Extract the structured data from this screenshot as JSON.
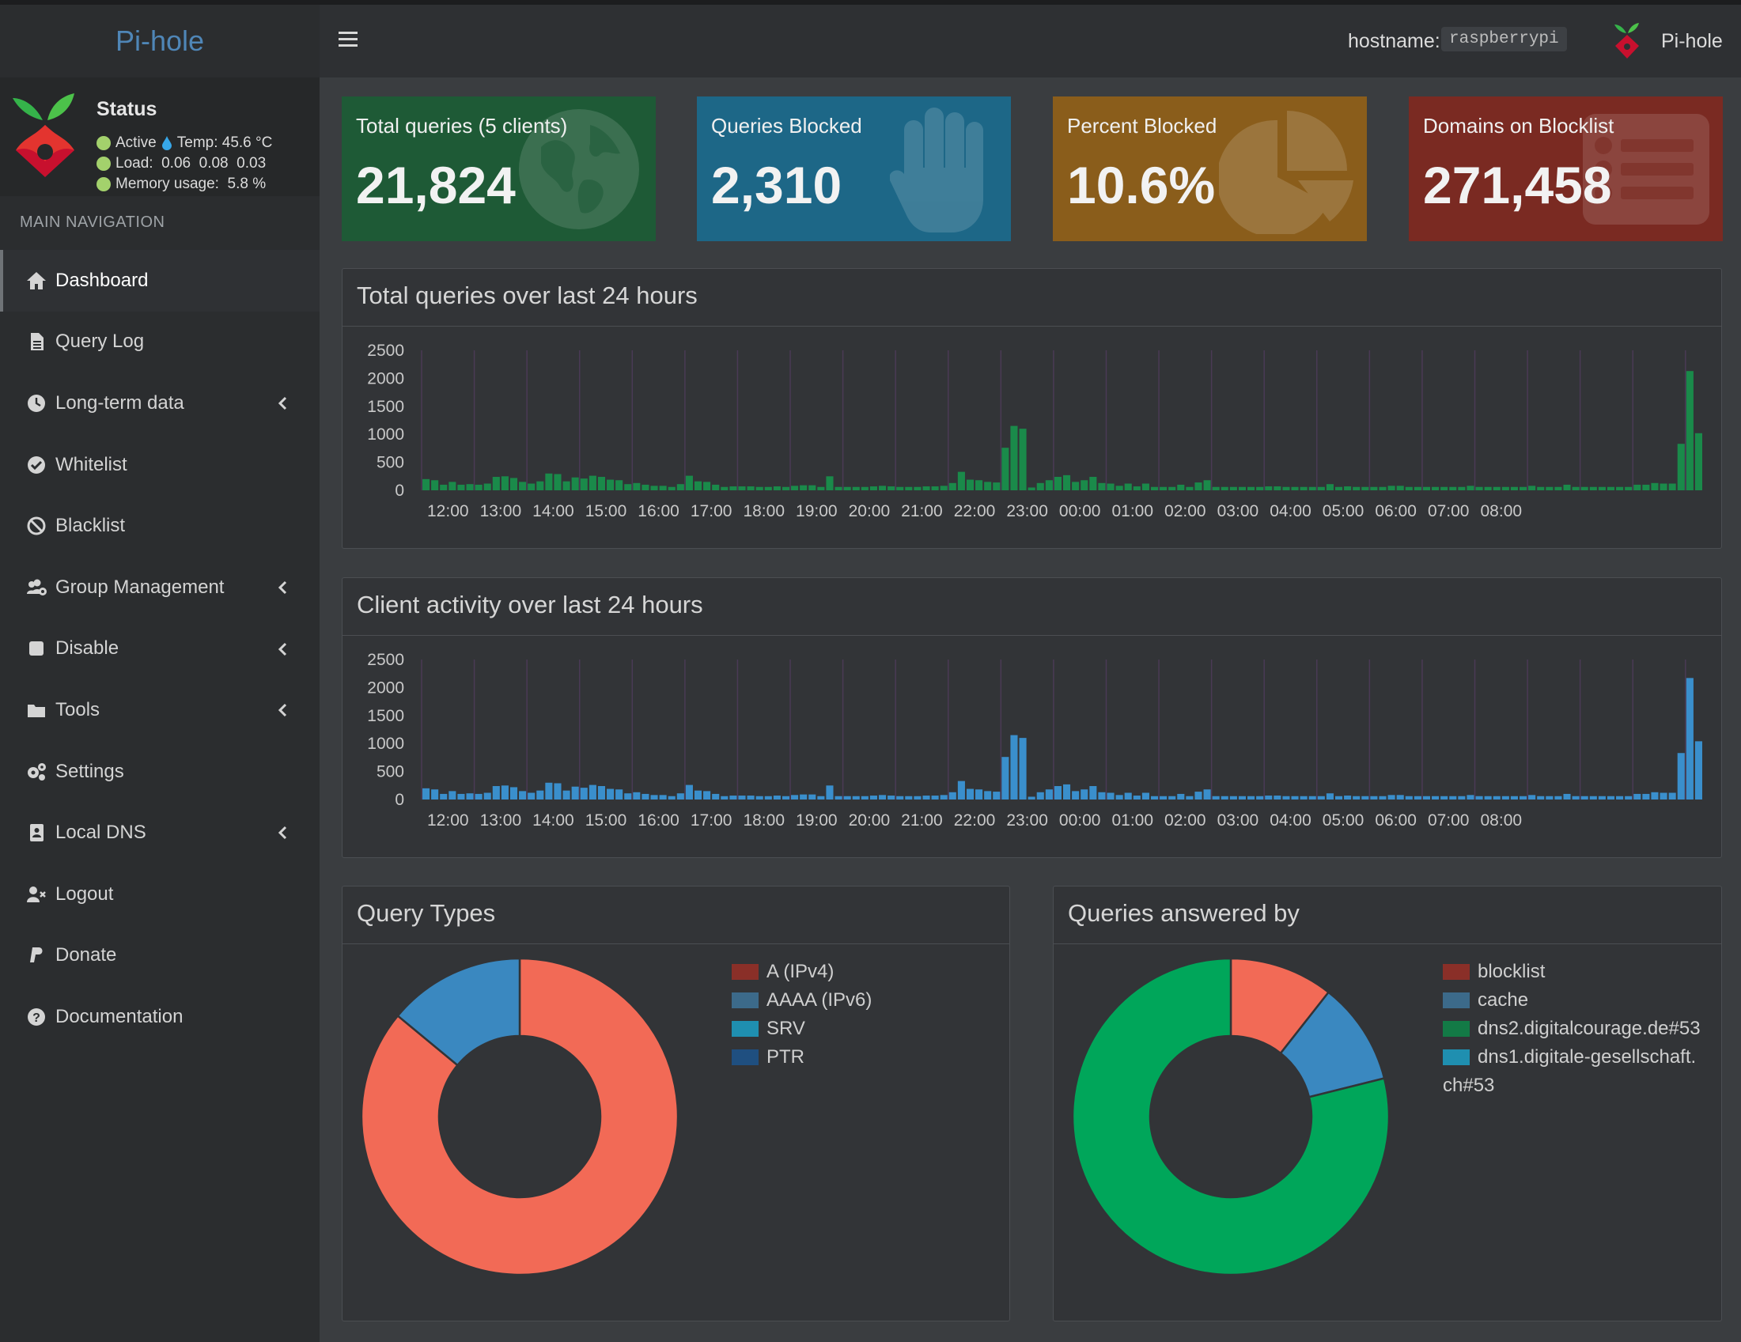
{
  "app": {
    "brand": "Pi-hole",
    "hostname_label": "hostname:",
    "hostname_value": "raspberrypi",
    "user_name": "Pi-hole"
  },
  "status": {
    "title": "Status",
    "active": "Active",
    "temp": "Temp: 45.6 °C",
    "load": "Load:  0.06  0.08  0.03",
    "memory": "Memory usage:  5.8 %"
  },
  "sidebar": {
    "header": "MAIN NAVIGATION",
    "items": [
      {
        "label": "Dashboard",
        "icon": "home-icon",
        "active": true,
        "submenu": false
      },
      {
        "label": "Query Log",
        "icon": "file-icon",
        "active": false,
        "submenu": false
      },
      {
        "label": "Long-term data",
        "icon": "clock-icon",
        "active": false,
        "submenu": true
      },
      {
        "label": "Whitelist",
        "icon": "check-circle-icon",
        "active": false,
        "submenu": false
      },
      {
        "label": "Blacklist",
        "icon": "ban-icon",
        "active": false,
        "submenu": false
      },
      {
        "label": "Group Management",
        "icon": "users-cog-icon",
        "active": false,
        "submenu": true
      },
      {
        "label": "Disable",
        "icon": "stop-icon",
        "active": false,
        "submenu": true
      },
      {
        "label": "Tools",
        "icon": "folder-icon",
        "active": false,
        "submenu": true
      },
      {
        "label": "Settings",
        "icon": "gears-icon",
        "active": false,
        "submenu": false
      },
      {
        "label": "Local DNS",
        "icon": "address-book-icon",
        "active": false,
        "submenu": true
      },
      {
        "label": "Logout",
        "icon": "user-times-icon",
        "active": false,
        "submenu": false
      },
      {
        "label": "Donate",
        "icon": "paypal-icon",
        "active": false,
        "submenu": false
      },
      {
        "label": "Documentation",
        "icon": "question-circle-icon",
        "active": false,
        "submenu": false
      }
    ]
  },
  "stats": [
    {
      "label": "Total queries (5 clients)",
      "value": "21,824",
      "color": "#1e5a36",
      "icon": "globe-icon"
    },
    {
      "label": "Queries Blocked",
      "value": "2,310",
      "color": "#1d6787",
      "icon": "hand-icon"
    },
    {
      "label": "Percent Blocked",
      "value": "10.6%",
      "color": "#8a5d1b",
      "icon": "pie-chart-icon"
    },
    {
      "label": "Domains on Blocklist",
      "value": "271,458",
      "color": "#7a2a22",
      "icon": "list-icon"
    }
  ],
  "colors": {
    "queries_bar": "#1a8a4a",
    "clients_bar": "#3a8fcc",
    "grid_vline": "#4a3a55"
  },
  "panels": {
    "total_queries_title": "Total queries over last 24 hours",
    "client_activity_title": "Client activity over last 24 hours",
    "query_types_title": "Query Types",
    "answered_by_title": "Queries answered by"
  },
  "chart_data": [
    {
      "type": "bar",
      "title": "Total queries over last 24 hours",
      "x_ticks": [
        "12:00",
        "13:00",
        "14:00",
        "15:00",
        "16:00",
        "17:00",
        "18:00",
        "19:00",
        "20:00",
        "21:00",
        "22:00",
        "23:00",
        "00:00",
        "01:00",
        "02:00",
        "03:00",
        "04:00",
        "05:00",
        "06:00",
        "07:00",
        "08:00"
      ],
      "y_ticks": [
        "2500",
        "2000",
        "1500",
        "1000",
        "500",
        "0"
      ],
      "ylim": [
        0,
        2500
      ],
      "bins_per_hour": 6,
      "color": "#1a8a4a",
      "values": [
        200,
        180,
        100,
        150,
        100,
        110,
        100,
        120,
        240,
        250,
        220,
        150,
        120,
        160,
        300,
        290,
        160,
        230,
        210,
        260,
        240,
        190,
        180,
        110,
        130,
        100,
        80,
        80,
        60,
        110,
        260,
        160,
        150,
        100,
        60,
        70,
        70,
        70,
        60,
        60,
        70,
        60,
        80,
        90,
        90,
        60,
        250,
        60,
        60,
        60,
        60,
        70,
        80,
        70,
        60,
        60,
        60,
        70,
        70,
        80,
        130,
        330,
        190,
        180,
        150,
        140,
        760,
        1150,
        1100,
        50,
        130,
        180,
        240,
        270,
        150,
        180,
        240,
        130,
        120,
        80,
        120,
        70,
        120,
        60,
        60,
        60,
        100,
        60,
        140,
        180,
        60,
        60,
        60,
        60,
        60,
        60,
        70,
        70,
        60,
        60,
        60,
        60,
        60,
        110,
        60,
        70,
        60,
        60,
        60,
        60,
        80,
        80,
        60,
        60,
        60,
        60,
        60,
        60,
        60,
        80,
        60,
        60,
        60,
        60,
        60,
        60,
        80,
        60,
        60,
        60,
        100,
        60,
        60,
        60,
        60,
        60,
        60,
        60,
        100,
        100,
        130,
        120,
        120,
        830,
        2130,
        1020
      ]
    },
    {
      "type": "bar",
      "title": "Client activity over last 24 hours",
      "x_ticks": [
        "12:00",
        "13:00",
        "14:00",
        "15:00",
        "16:00",
        "17:00",
        "18:00",
        "19:00",
        "20:00",
        "21:00",
        "22:00",
        "23:00",
        "00:00",
        "01:00",
        "02:00",
        "03:00",
        "04:00",
        "05:00",
        "06:00",
        "07:00",
        "08:00"
      ],
      "y_ticks": [
        "2500",
        "2000",
        "1500",
        "1000",
        "500",
        "0"
      ],
      "ylim": [
        0,
        2500
      ],
      "bins_per_hour": 6,
      "color": "#3a8fcc",
      "values": [
        200,
        180,
        100,
        150,
        100,
        110,
        100,
        120,
        240,
        250,
        220,
        150,
        120,
        160,
        300,
        290,
        160,
        230,
        210,
        260,
        240,
        190,
        180,
        110,
        130,
        100,
        80,
        80,
        60,
        110,
        260,
        160,
        150,
        100,
        60,
        70,
        70,
        70,
        60,
        60,
        70,
        60,
        80,
        90,
        90,
        60,
        250,
        60,
        60,
        60,
        60,
        70,
        80,
        70,
        60,
        60,
        60,
        70,
        70,
        80,
        130,
        330,
        190,
        180,
        150,
        140,
        760,
        1150,
        1100,
        50,
        130,
        180,
        240,
        270,
        150,
        180,
        240,
        130,
        120,
        80,
        120,
        70,
        120,
        60,
        60,
        60,
        100,
        60,
        140,
        180,
        60,
        60,
        60,
        60,
        60,
        60,
        70,
        70,
        60,
        60,
        60,
        60,
        60,
        110,
        60,
        70,
        60,
        60,
        60,
        60,
        80,
        80,
        60,
        60,
        60,
        60,
        60,
        60,
        60,
        80,
        60,
        60,
        60,
        60,
        60,
        60,
        80,
        60,
        60,
        60,
        100,
        60,
        60,
        60,
        60,
        60,
        60,
        60,
        100,
        100,
        130,
        120,
        120,
        830,
        2170,
        1040
      ]
    },
    {
      "type": "pie",
      "title": "Query Types",
      "donut": true,
      "slices": [
        {
          "name": "A (IPv4)",
          "value": 86,
          "color": "#f26a56"
        },
        {
          "name": "AAAA (IPv6)",
          "value": 14,
          "color": "#3a88c0"
        },
        {
          "name": "SRV",
          "value": 0,
          "color": "#1f9fc4"
        },
        {
          "name": "PTR",
          "value": 0,
          "color": "#1d5e94"
        }
      ],
      "legend_colors": [
        "#8a2f28",
        "#3c6a8a",
        "#1f8fb0",
        "#1f4f80"
      ]
    },
    {
      "type": "pie",
      "title": "Queries answered by",
      "donut": true,
      "slices": [
        {
          "name": "blocklist",
          "value": 10.6,
          "color": "#f26a56"
        },
        {
          "name": "cache",
          "value": 10.5,
          "color": "#3a88c0"
        },
        {
          "name": "dns2.digitalcourage.de#53",
          "value": 78.9,
          "color": "#00a65a"
        },
        {
          "name": "dns1.digitale-gesellschaft.ch#53",
          "value": 0,
          "color": "#1f9fc4"
        }
      ],
      "legend_colors": [
        "#8a2f28",
        "#3c6a8a",
        "#137a46",
        "#1f8fb0"
      ],
      "legend_wrap": {
        "line1": "dns1.digitale-gesellschaft.",
        "line2": "ch#53"
      }
    }
  ]
}
